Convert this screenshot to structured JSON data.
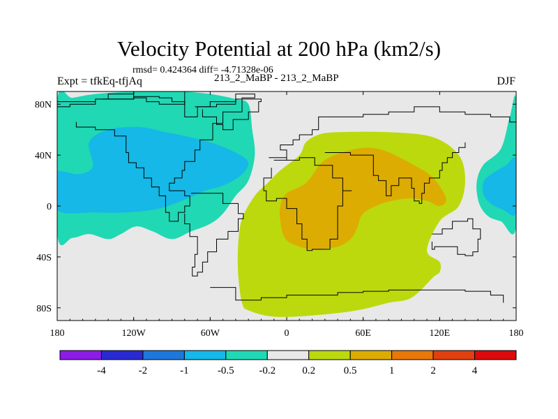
{
  "figure": {
    "title": "Velocity Potential at 200 hPa (km2/s)",
    "stats": "rmsd= 0.424364 diff= -4.71328e-06",
    "experiment": "Expt = tfkEq-tfjAq",
    "runs": "213_2_MaBP - 213_2_MaBP",
    "season": "DJF"
  },
  "chart_data": {
    "type": "heatmap",
    "title": "Velocity Potential at 200 hPa (km2/s)",
    "xlim": [
      -180,
      180
    ],
    "ylim": [
      -90,
      90
    ],
    "x_ticks": [
      {
        "value": -180,
        "label": "180"
      },
      {
        "value": -120,
        "label": "120W"
      },
      {
        "value": -60,
        "label": "60W"
      },
      {
        "value": 0,
        "label": "0"
      },
      {
        "value": 60,
        "label": "60E"
      },
      {
        "value": 120,
        "label": "120E"
      },
      {
        "value": 180,
        "label": "180"
      }
    ],
    "y_ticks": [
      {
        "value": 80,
        "label": "80N"
      },
      {
        "value": 40,
        "label": "40N"
      },
      {
        "value": 0,
        "label": "0"
      },
      {
        "value": -40,
        "label": "40S"
      },
      {
        "value": -80,
        "label": "80S"
      }
    ],
    "colorbar": {
      "colors": [
        "#8c1ce6",
        "#2a2ad2",
        "#1e78dc",
        "#15b8e6",
        "#20d8b4",
        "#e8e8e8",
        "#bcd90e",
        "#dcac02",
        "#e8780a",
        "#e04010",
        "#dc0a0a"
      ],
      "labels": [
        "-4",
        "-2",
        "-1",
        "-0.5",
        "-0.2",
        "0.2",
        "0.5",
        "1",
        "2",
        "4"
      ]
    },
    "regions": [
      {
        "name": "negative-outer-west",
        "level": "-0.5 to -0.2",
        "color": "#20d8b4",
        "polygon": [
          [
            -180,
            83
          ],
          [
            -168,
            85
          ],
          [
            -150,
            88
          ],
          [
            -120,
            90
          ],
          [
            -85,
            90
          ],
          [
            -60,
            88
          ],
          [
            -40,
            84
          ],
          [
            -30,
            80
          ],
          [
            -27,
            60
          ],
          [
            -25,
            40
          ],
          [
            -30,
            20
          ],
          [
            -40,
            8
          ],
          [
            -50,
            -6
          ],
          [
            -60,
            -14
          ],
          [
            -75,
            -20
          ],
          [
            -90,
            -26
          ],
          [
            -105,
            -20
          ],
          [
            -118,
            -16
          ],
          [
            -130,
            -22
          ],
          [
            -140,
            -26
          ],
          [
            -155,
            -22
          ],
          [
            -168,
            -25
          ],
          [
            -180,
            -22
          ]
        ]
      },
      {
        "name": "negative-inner-west",
        "level": "-1 to -0.5",
        "color": "#15b8e6",
        "polygon": [
          [
            -180,
            25
          ],
          [
            -175,
            27
          ],
          [
            -163,
            25
          ],
          [
            -152,
            31
          ],
          [
            -155,
            50
          ],
          [
            -140,
            60
          ],
          [
            -115,
            62
          ],
          [
            -95,
            58
          ],
          [
            -80,
            55
          ],
          [
            -60,
            50
          ],
          [
            -40,
            42
          ],
          [
            -30,
            34
          ],
          [
            -36,
            24
          ],
          [
            -50,
            16
          ],
          [
            -64,
            12
          ],
          [
            -80,
            5
          ],
          [
            -100,
            -2
          ],
          [
            -125,
            -5
          ],
          [
            -150,
            -5
          ],
          [
            -180,
            -3
          ]
        ]
      },
      {
        "name": "negative-outer-east",
        "level": "-0.5 to -0.2",
        "color": "#20d8b4",
        "polygon": [
          [
            180,
            82
          ],
          [
            175,
            70
          ],
          [
            168,
            45
          ],
          [
            154,
            32
          ],
          [
            149,
            18
          ],
          [
            151,
            2
          ],
          [
            158,
            -8
          ],
          [
            168,
            -12
          ],
          [
            180,
            -16
          ]
        ]
      },
      {
        "name": "negative-inner-east",
        "level": "-1 to -0.5",
        "color": "#15b8e6",
        "polygon": [
          [
            180,
            36
          ],
          [
            172,
            32
          ],
          [
            162,
            26
          ],
          [
            155,
            20
          ],
          [
            154,
            10
          ],
          [
            160,
            2
          ],
          [
            170,
            -3
          ],
          [
            180,
            -5
          ]
        ]
      },
      {
        "name": "positive-outer",
        "level": "0.2 to 0.5",
        "color": "#bcd90e",
        "polygon": [
          [
            -35,
            -76
          ],
          [
            -30,
            -82
          ],
          [
            -10,
            -87
          ],
          [
            20,
            -86
          ],
          [
            55,
            -82
          ],
          [
            80,
            -76
          ],
          [
            98,
            -72
          ],
          [
            115,
            -56
          ],
          [
            120,
            -52
          ],
          [
            120,
            -44
          ],
          [
            110,
            -35
          ],
          [
            120,
            -12
          ],
          [
            135,
            0
          ],
          [
            140,
            20
          ],
          [
            135,
            40
          ],
          [
            115,
            54
          ],
          [
            80,
            58
          ],
          [
            40,
            58
          ],
          [
            25,
            56
          ],
          [
            15,
            50
          ],
          [
            10,
            40
          ],
          [
            -5,
            28
          ],
          [
            -15,
            18
          ],
          [
            -25,
            8
          ],
          [
            -35,
            -10
          ],
          [
            -38,
            -30
          ],
          [
            -38,
            -54
          ]
        ]
      },
      {
        "name": "positive-inner",
        "level": "0.5 to 1",
        "color": "#dcac02",
        "polygon": [
          [
            -5,
            -12
          ],
          [
            -2,
            -24
          ],
          [
            5,
            -30
          ],
          [
            20,
            -34
          ],
          [
            40,
            -32
          ],
          [
            50,
            -26
          ],
          [
            55,
            -18
          ],
          [
            60,
            -6
          ],
          [
            75,
            2
          ],
          [
            95,
            6
          ],
          [
            110,
            4
          ],
          [
            120,
            0
          ],
          [
            125,
            6
          ],
          [
            115,
            22
          ],
          [
            100,
            32
          ],
          [
            75,
            44
          ],
          [
            55,
            45
          ],
          [
            30,
            36
          ],
          [
            15,
            18
          ],
          [
            0,
            10
          ],
          [
            -5,
            0
          ]
        ]
      }
    ]
  }
}
